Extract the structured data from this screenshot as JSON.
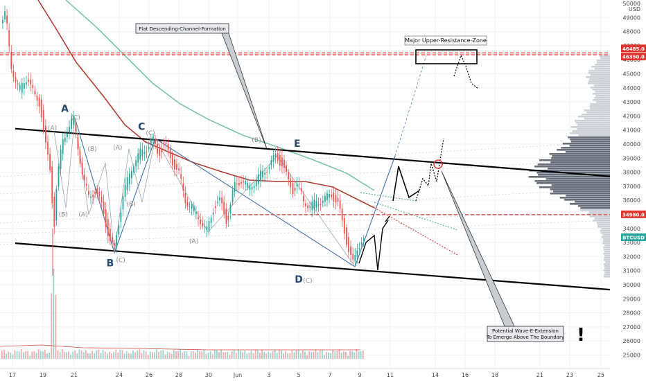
{
  "chart_data": {
    "type": "candlestick",
    "symbol": "BTCUSD",
    "price_axis": {
      "currency": "USD",
      "ylim": [
        25000,
        50000
      ],
      "ticks": [
        25000,
        26000,
        27000,
        28000,
        29000,
        30000,
        31000,
        32000,
        33000,
        34000,
        35000,
        36000,
        37000,
        38000,
        39000,
        40000,
        41000,
        42000,
        43000,
        44000,
        45000,
        46000,
        47000,
        48000,
        49000
      ],
      "top_label": "50000"
    },
    "time_axis": {
      "ticks": [
        "17",
        "19",
        "21",
        "24",
        "26",
        "28",
        "30",
        "Jun",
        "3",
        "5",
        "7",
        "9",
        "11",
        "14",
        "16",
        "18",
        "21",
        "23",
        "25"
      ]
    },
    "price_labels": [
      {
        "text": "46485.0",
        "value": 46485,
        "color": "#e0342f"
      },
      {
        "text": "46350.0",
        "value": 46350,
        "color": "#e0342f"
      },
      {
        "text": "34980.0",
        "value": 34980,
        "color": "#e0342f"
      },
      {
        "text": "BTCUSD",
        "value": 33350,
        "color": "#25a69a"
      }
    ],
    "horizontal_levels": [
      {
        "value": 46485,
        "color": "#e0342f",
        "style": "dashed"
      },
      {
        "value": 46350,
        "color": "#e0342f",
        "style": "dashed"
      },
      {
        "value": 34980,
        "color": "#e0342f",
        "style": "dashed"
      }
    ],
    "waves": [
      {
        "label": "A",
        "size": "big",
        "x": "20.4",
        "y": 42300
      },
      {
        "label": "(C)",
        "size": "small",
        "x": "21.1",
        "y": 41750
      },
      {
        "label": "(A)",
        "size": "small",
        "x": "19.6",
        "y": 41000
      },
      {
        "label": "(B)",
        "size": "small",
        "x": "20.3",
        "y": 34850
      },
      {
        "label": "(A)",
        "size": "small",
        "x": "21.6",
        "y": 34850
      },
      {
        "label": "(B)",
        "size": "small",
        "x": "22.2",
        "y": 39500
      },
      {
        "label": "B",
        "size": "big",
        "x": "23.4",
        "y": 31300
      },
      {
        "label": "(C)",
        "size": "small",
        "x": "24.1",
        "y": 31600
      },
      {
        "label": "(A)",
        "size": "small",
        "x": "23.9",
        "y": 39600
      },
      {
        "label": "(B)",
        "size": "small",
        "x": "24.8",
        "y": 35600
      },
      {
        "label": "C",
        "size": "big",
        "x": "25.5",
        "y": 41000
      },
      {
        "label": "(C)",
        "size": "small",
        "x": "26.1",
        "y": 40650
      },
      {
        "label": "(A)",
        "size": "small",
        "x": "29.0",
        "y": 32950
      },
      {
        "label": "(B)",
        "size": "small",
        "x": "33.2",
        "y": 40150
      },
      {
        "label": "E",
        "size": "big",
        "x": "35.9",
        "y": 39800
      },
      {
        "label": "D",
        "size": "big",
        "x": "36.0",
        "y": 30150
      },
      {
        "label": "(C)",
        "size": "small",
        "x": "36.6",
        "y": 30150
      }
    ],
    "channel": {
      "upper": [
        [
          0.0,
          41100
        ],
        [
          100.0,
          37700
        ]
      ],
      "lower": [
        [
          0.0,
          32950
        ],
        [
          100.0,
          29650
        ]
      ]
    },
    "annotations": [
      {
        "text": "Flat Descending-Channel-Formation",
        "points_to": 39700
      },
      {
        "text": "Major Upper-Resistance-Zone",
        "range": [
          45600,
          46750
        ]
      },
      {
        "text": "Potential Wave-E-Extension\nTo Emerge Above The Boundary",
        "points_to": 38800
      },
      {
        "text": "!"
      }
    ]
  }
}
